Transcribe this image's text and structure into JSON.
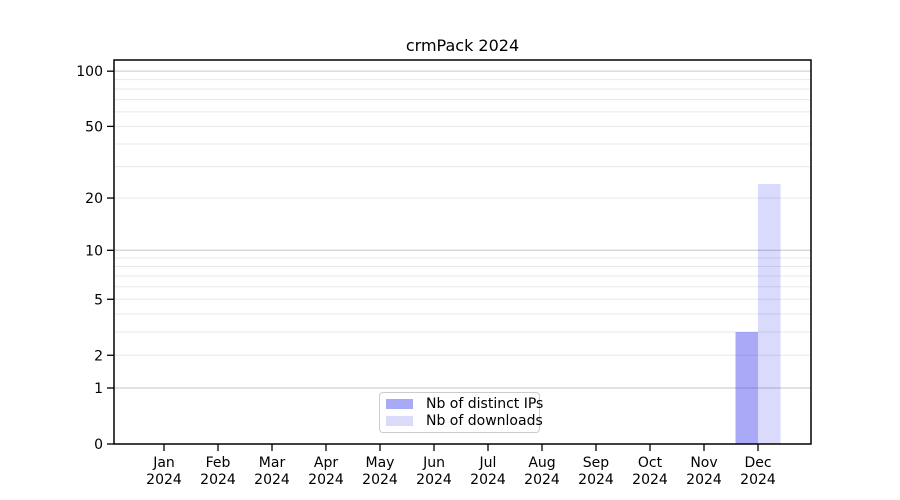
{
  "title": "crmPack 2024",
  "chart_data": {
    "type": "bar",
    "title": "crmPack 2024",
    "categories": [
      "Jan",
      "Feb",
      "Mar",
      "Apr",
      "May",
      "Jun",
      "Jul",
      "Aug",
      "Sep",
      "Oct",
      "Nov",
      "Dec"
    ],
    "category_year_line": "2024",
    "series": [
      {
        "name": "Nb of distinct IPs",
        "fill": "rgba(60,60,240,0.44)",
        "swatch": "#a9a9f8",
        "values": [
          0,
          0,
          0,
          0,
          0,
          0,
          0,
          0,
          0,
          0,
          0,
          3
        ]
      },
      {
        "name": "Nb of downloads",
        "fill": "rgba(60,60,240,0.19)",
        "swatch": "#dadaf9",
        "values": [
          0,
          0,
          0,
          0,
          0,
          0,
          0,
          0,
          0,
          0,
          0,
          24
        ]
      }
    ],
    "xlabel": "",
    "ylabel": "",
    "yscale": "log1p",
    "ylim": [
      0,
      115
    ],
    "yticks": [
      0,
      1,
      2,
      5,
      10,
      20,
      50,
      100
    ],
    "grid": {
      "on": true,
      "major_lines": [
        1,
        10,
        100
      ],
      "minor_lines": [
        2,
        3,
        4,
        5,
        6,
        7,
        8,
        9,
        20,
        30,
        40,
        50,
        60,
        70,
        80,
        90
      ],
      "major_color": "#c6c6c6",
      "minor_color": "#e8e8e8"
    },
    "legend_position": "lower center",
    "axis_color": "#000000",
    "text_color": "#000000",
    "background_color": "#ffffff"
  }
}
